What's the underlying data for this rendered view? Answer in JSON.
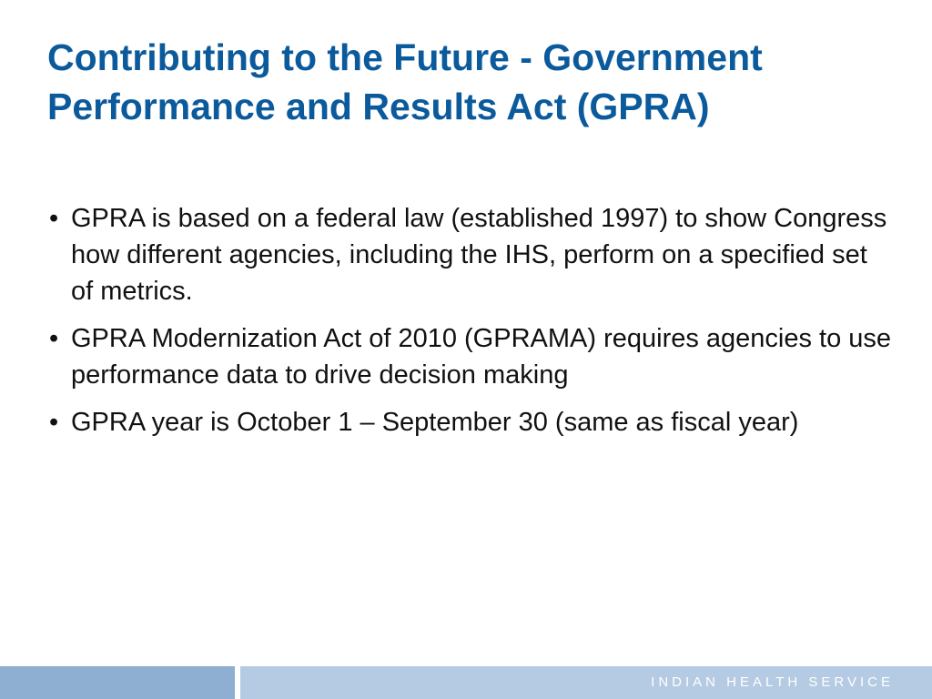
{
  "slide": {
    "title": "Contributing to the Future - Government Performance and Results Act (GPRA)",
    "bullet_symbol": "•",
    "bullets": [
      "GPRA is based on a federal law (established 1997) to show Congress how different agencies, including the IHS, perform on a specified set of metrics.",
      "GPRA Modernization Act of 2010 (GPRAMA) requires agencies to use performance data to drive decision making",
      "GPRA year is October 1 – September 30 (same as fiscal year)"
    ]
  },
  "footer": {
    "org_name": "INDIAN HEALTH SERVICE"
  },
  "colors": {
    "title": "#0b5a9c",
    "body_text": "#111111",
    "footer_left": "#8eaed2",
    "footer_right": "#b5cbe3",
    "footer_text": "#ffffff"
  }
}
